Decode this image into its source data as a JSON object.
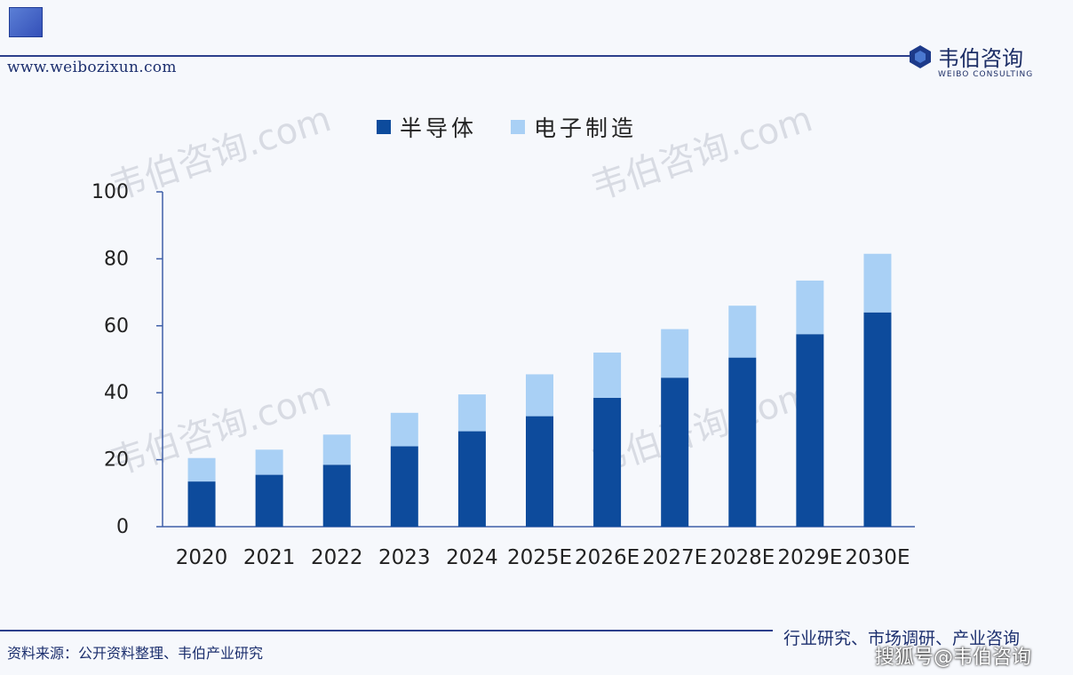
{
  "header": {
    "url": "www.weibozixun.com",
    "brand_name": "韦伯咨询",
    "brand_sub": "WEIBO CONSULTING"
  },
  "watermark_text": "韦伯咨询.com",
  "chart_data": {
    "type": "bar",
    "stacked": true,
    "categories": [
      "2020",
      "2021",
      "2022",
      "2023",
      "2024",
      "2025E",
      "2026E",
      "2027E",
      "2028E",
      "2029E",
      "2030E"
    ],
    "series": [
      {
        "name": "半导体",
        "color": "#0d4b9c",
        "values": [
          13.5,
          15.5,
          18.5,
          24,
          28.5,
          33,
          38.5,
          44.5,
          50.5,
          57.5,
          64
        ]
      },
      {
        "name": "电子制造",
        "color": "#a9d0f5",
        "values": [
          7,
          7.5,
          9,
          10,
          11,
          12.5,
          13.5,
          14.5,
          15.5,
          16,
          17.5
        ]
      }
    ],
    "ylim": [
      0,
      100
    ],
    "yticks": [
      0,
      20,
      40,
      60,
      80,
      100
    ],
    "legend_position": "top"
  },
  "footer": {
    "source": "资料来源：公开资料整理、韦伯产业研究",
    "tagline": "行业研究、市场调研、产业咨询",
    "credit": "搜狐号@韦伯咨询"
  }
}
